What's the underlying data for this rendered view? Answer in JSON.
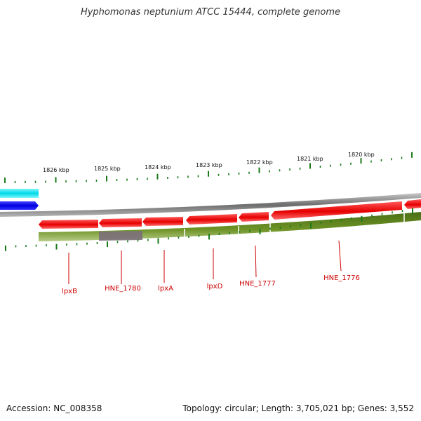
{
  "title": "Hyphomonas neptunium ATCC 15444, complete genome",
  "ruler_labels": [
    "1826 kbp",
    "1825 kbp",
    "1824 kbp",
    "1823 kbp",
    "1822 kbp",
    "1821 kbp",
    "1820 kbp"
  ],
  "genes": [
    {
      "label": "lpxB"
    },
    {
      "label": "HNE_1780"
    },
    {
      "label": "lpxA"
    },
    {
      "label": "lpxD"
    },
    {
      "label": "HNE_1777"
    },
    {
      "label": "HNE_1776"
    }
  ],
  "footer": {
    "accession": "Accession: NC_008358",
    "topology": "Topology: circular; Length: 3,705,021 bp; Genes: 3,552"
  },
  "colors": {
    "gene_arrow": "#ff0000",
    "cds_track": "#5f8a1e",
    "backbone": "#888888",
    "track_cyan": "#00e5ee",
    "track_blue": "#0000ee",
    "gene_label": "#cc0000",
    "tick": "#1a7a1a"
  }
}
